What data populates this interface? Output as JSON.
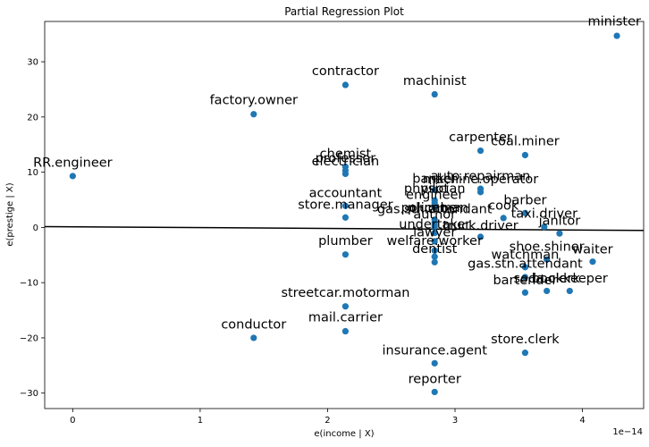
{
  "chart_data": {
    "type": "scatter",
    "title": "Partial Regression Plot",
    "xlabel": "e(income | X)",
    "ylabel": "e(prestige | X)",
    "x_multiplier": "1e−14",
    "xlim": [
      -0.22,
      4.48
    ],
    "ylim": [
      -32.8,
      37.3
    ],
    "x_ticks": [
      0,
      1,
      2,
      3,
      4
    ],
    "x_tick_labels": [
      "0",
      "1",
      "2",
      "3",
      "4"
    ],
    "y_ticks": [
      -30,
      -20,
      -10,
      0,
      10,
      20,
      30
    ],
    "y_tick_labels": [
      "−30",
      "−20",
      "−10",
      "0",
      "10",
      "20",
      "30"
    ],
    "point_color": "#1f77b4",
    "line_color": "#000000",
    "fit_line": {
      "x": [
        -0.22,
        4.48
      ],
      "y": [
        0.15,
        -0.55
      ]
    },
    "points": [
      {
        "label": "minister",
        "x": 4.27,
        "y": 34.7
      },
      {
        "label": "contractor",
        "x": 2.14,
        "y": 25.8
      },
      {
        "label": "machinist",
        "x": 2.84,
        "y": 24.1
      },
      {
        "label": "factory.owner",
        "x": 1.42,
        "y": 20.5
      },
      {
        "label": "carpenter",
        "x": 3.2,
        "y": 13.9
      },
      {
        "label": "coal.miner",
        "x": 3.55,
        "y": 13.1
      },
      {
        "label": "chemist",
        "x": 2.14,
        "y": 11.0
      },
      {
        "label": "professor",
        "x": 2.14,
        "y": 10.3
      },
      {
        "label": "electrician",
        "x": 2.14,
        "y": 9.7
      },
      {
        "label": "RR.engineer",
        "x": 0.0,
        "y": 9.3
      },
      {
        "label": "auto.repairman",
        "x": 3.2,
        "y": 7.0
      },
      {
        "label": "machine.operator",
        "x": 3.2,
        "y": 6.4
      },
      {
        "label": "banker",
        "x": 2.84,
        "y": 6.8
      },
      {
        "label": "physician",
        "x": 2.84,
        "y": 4.9
      },
      {
        "label": "pilot",
        "x": 2.84,
        "y": 4.4
      },
      {
        "label": "engineer",
        "x": 2.84,
        "y": 3.7
      },
      {
        "label": "accountant",
        "x": 2.14,
        "y": 3.9
      },
      {
        "label": "store.manager",
        "x": 2.14,
        "y": 1.8
      },
      {
        "label": "cook",
        "x": 3.38,
        "y": 1.7
      },
      {
        "label": "barber",
        "x": 3.55,
        "y": 2.6
      },
      {
        "label": "policeman",
        "x": 2.84,
        "y": 1.4
      },
      {
        "label": "plumber",
        "x": 2.84,
        "y": 0.9
      },
      {
        "label": "gas.stn.attendant",
        "x": 2.84,
        "y": 0.5
      },
      {
        "label": "author",
        "x": 2.84,
        "y": 0.1
      },
      {
        "label": "taxi.driver",
        "x": 3.7,
        "y": 0.1
      },
      {
        "label": "janitor",
        "x": 3.82,
        "y": -1.1
      },
      {
        "label": "undertaker",
        "x": 2.84,
        "y": -1.0
      },
      {
        "label": "truck.driver",
        "x": 3.2,
        "y": -1.7
      },
      {
        "label": "lawyer",
        "x": 2.84,
        "y": -2.5
      },
      {
        "label": "welfare.worker",
        "x": 2.84,
        "y": -4.2
      },
      {
        "label": "dentist",
        "x": 2.84,
        "y": -5.3
      },
      {
        "label": "plumber",
        "x": 2.14,
        "y": -4.9
      },
      {
        "label": "conductor",
        "x": 2.84,
        "y": -6.3
      },
      {
        "label": "shoe.shiner",
        "x": 3.72,
        "y": -5.8
      },
      {
        "label": "watchman",
        "x": 3.55,
        "y": -7.2
      },
      {
        "label": "waiter",
        "x": 4.08,
        "y": -6.2
      },
      {
        "label": "gas.stn.attendant",
        "x": 3.55,
        "y": -9.0
      },
      {
        "label": "bartender",
        "x": 3.55,
        "y": -11.8
      },
      {
        "label": "soda.clerk",
        "x": 3.72,
        "y": -11.5
      },
      {
        "label": "bookkeeper",
        "x": 3.9,
        "y": -11.5
      },
      {
        "label": "streetcar.motorman",
        "x": 2.14,
        "y": -14.3
      },
      {
        "label": "mail.carrier",
        "x": 2.14,
        "y": -18.8
      },
      {
        "label": "conductor",
        "x": 1.42,
        "y": -20.0
      },
      {
        "label": "store.clerk",
        "x": 3.55,
        "y": -22.7
      },
      {
        "label": "insurance.agent",
        "x": 2.84,
        "y": -24.6
      },
      {
        "label": "reporter",
        "x": 2.84,
        "y": -29.8
      }
    ],
    "labels": [
      {
        "text": "minister",
        "x": 4.25,
        "y": 36.6
      },
      {
        "text": "contractor",
        "x": 2.14,
        "y": 27.6
      },
      {
        "text": "machinist",
        "x": 2.84,
        "y": 25.8
      },
      {
        "text": "factory.owner",
        "x": 1.42,
        "y": 22.3
      },
      {
        "text": "carpenter",
        "x": 3.2,
        "y": 15.6
      },
      {
        "text": "coal.miner",
        "x": 3.55,
        "y": 14.9
      },
      {
        "text": "chemist",
        "x": 2.14,
        "y": 12.6
      },
      {
        "text": "professor",
        "x": 2.14,
        "y": 11.8
      },
      {
        "text": "electrician",
        "x": 2.14,
        "y": 11.2
      },
      {
        "text": "RR.engineer",
        "x": 0.0,
        "y": 11.0
      },
      {
        "text": "auto.repairman",
        "x": 3.2,
        "y": 8.6
      },
      {
        "text": "machine.operator",
        "x": 3.2,
        "y": 8.0
      },
      {
        "text": "banker",
        "x": 2.84,
        "y": 8.1
      },
      {
        "text": "physician",
        "x": 2.84,
        "y": 6.3
      },
      {
        "text": "pilot",
        "x": 2.84,
        "y": 6.3
      },
      {
        "text": "engineer",
        "x": 2.84,
        "y": 5.2
      },
      {
        "text": "accountant",
        "x": 2.14,
        "y": 5.5
      },
      {
        "text": "store.manager",
        "x": 2.14,
        "y": 3.4
      },
      {
        "text": "cook",
        "x": 3.38,
        "y": 3.2
      },
      {
        "text": "barber",
        "x": 3.55,
        "y": 4.2
      },
      {
        "text": "policeman",
        "x": 2.84,
        "y": 2.8
      },
      {
        "text": "plumber",
        "x": 2.84,
        "y": 2.8
      },
      {
        "text": "gas.stn.attendant",
        "x": 2.84,
        "y": 2.6
      },
      {
        "text": "author",
        "x": 2.84,
        "y": 1.6
      },
      {
        "text": "taxi.driver",
        "x": 3.7,
        "y": 1.8
      },
      {
        "text": "janitor",
        "x": 3.82,
        "y": 0.5
      },
      {
        "text": "undertaker",
        "x": 2.84,
        "y": -0.2
      },
      {
        "text": "truck.driver",
        "x": 3.2,
        "y": -0.4
      },
      {
        "text": "lawyer",
        "x": 2.84,
        "y": -1.6
      },
      {
        "text": "welfare.worker",
        "x": 2.84,
        "y": -3.2
      },
      {
        "text": "dentist",
        "x": 2.84,
        "y": -4.6
      },
      {
        "text": "plumber",
        "x": 2.14,
        "y": -3.2
      },
      {
        "text": "shoe.shiner",
        "x": 3.72,
        "y": -4.2
      },
      {
        "text": "watchman",
        "x": 3.55,
        "y": -5.7
      },
      {
        "text": "waiter",
        "x": 4.08,
        "y": -4.7
      },
      {
        "text": "gas.stn.attendant",
        "x": 3.55,
        "y": -7.3
      },
      {
        "text": "bartender",
        "x": 3.55,
        "y": -10.3
      },
      {
        "text": "soda.clerk",
        "x": 3.72,
        "y": -10.0
      },
      {
        "text": "bookkeeper",
        "x": 3.9,
        "y": -10.0
      },
      {
        "text": "streetcar.motorman",
        "x": 2.14,
        "y": -12.6
      },
      {
        "text": "mail.carrier",
        "x": 2.14,
        "y": -17.0
      },
      {
        "text": "conductor",
        "x": 1.42,
        "y": -18.3
      },
      {
        "text": "store.clerk",
        "x": 3.55,
        "y": -21.0
      },
      {
        "text": "insurance.agent",
        "x": 2.84,
        "y": -23.0
      },
      {
        "text": "reporter",
        "x": 2.84,
        "y": -28.2
      }
    ]
  }
}
